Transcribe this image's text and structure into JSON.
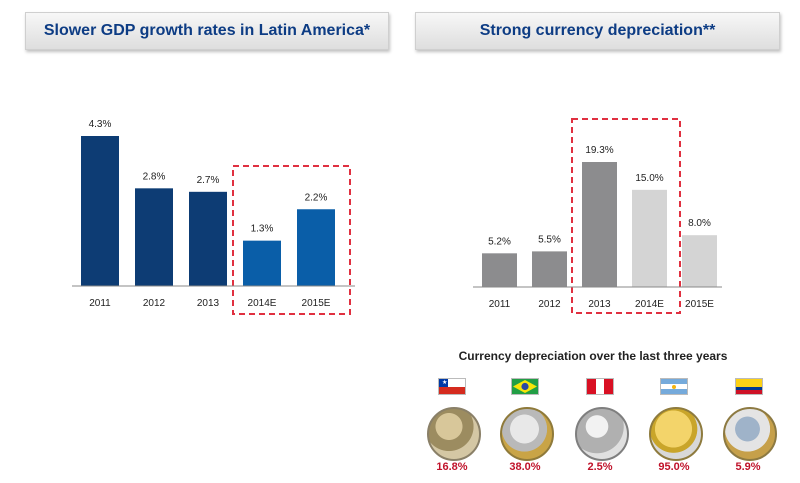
{
  "headers": {
    "left": "Slower GDP growth rates in Latin America*",
    "right": "Strong currency depreciation**"
  },
  "chart_data": [
    {
      "type": "bar",
      "title": "Slower GDP growth rates in Latin America*",
      "categories": [
        "2011",
        "2012",
        "2013",
        "2014E",
        "2015E"
      ],
      "values": [
        4.3,
        2.8,
        2.7,
        1.3,
        2.2
      ],
      "labels": [
        "4.3%",
        "2.8%",
        "2.7%",
        "1.3%",
        "2.2%"
      ],
      "colors": [
        "#0d3c74",
        "#0d3c74",
        "#0d3c74",
        "#0a5ea8",
        "#0a5ea8"
      ],
      "highlighted": [
        "2014E",
        "2015E"
      ],
      "highlight_color": "#e03040",
      "ylim": [
        0,
        4.3
      ],
      "grid": false
    },
    {
      "type": "bar",
      "title": "Strong currency depreciation**",
      "categories": [
        "2011",
        "2012",
        "2013",
        "2014E",
        "2015E"
      ],
      "values": [
        5.2,
        5.5,
        19.3,
        15.0,
        8.0
      ],
      "labels": [
        "5.2%",
        "5.5%",
        "19.3%",
        "15.0%",
        "8.0%"
      ],
      "colors": [
        "#8c8c8e",
        "#8c8c8e",
        "#8c8c8e",
        "#d4d4d4",
        "#d4d4d4"
      ],
      "highlighted": [
        "2013",
        "2014E"
      ],
      "highlight_color": "#e03040",
      "ylim": [
        0,
        19.3
      ],
      "grid": false
    }
  ],
  "coins": {
    "title": "Currency depreciation over the last three years",
    "items": [
      {
        "flag": "chile",
        "flag_icon": "chile-flag-icon",
        "value": "16.8%"
      },
      {
        "flag": "brazil",
        "flag_icon": "brazil-flag-icon",
        "value": "38.0%"
      },
      {
        "flag": "peru",
        "flag_icon": "peru-flag-icon",
        "value": "2.5%"
      },
      {
        "flag": "argentina",
        "flag_icon": "argentina-flag-icon",
        "value": "95.0%"
      },
      {
        "flag": "colombia",
        "flag_icon": "colombia-flag-icon",
        "value": "5.9%"
      }
    ],
    "value_color": "#c0122a"
  }
}
